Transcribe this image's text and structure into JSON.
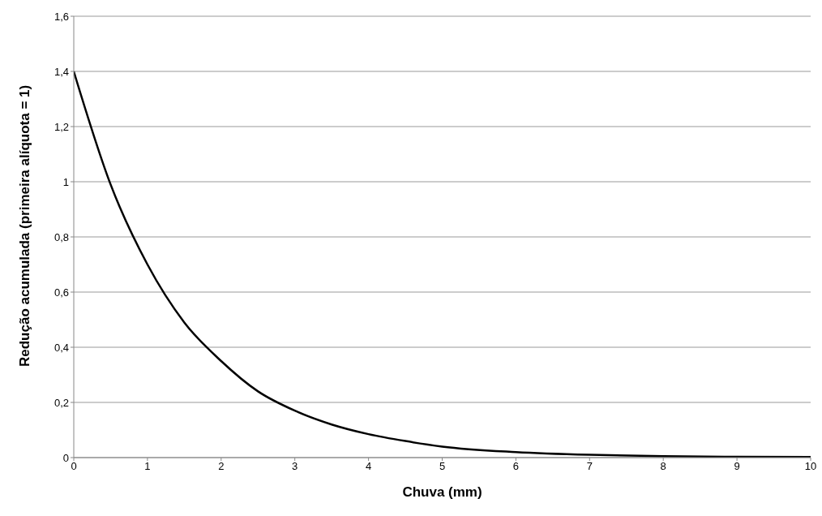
{
  "chart_data": {
    "type": "line",
    "xlabel": "Chuva (mm)",
    "ylabel": "Redução acumulada (primeira alíquota = 1)",
    "x": [
      0,
      0.5,
      1,
      1.5,
      2,
      2.5,
      3,
      3.5,
      4,
      4.5,
      5,
      6,
      7,
      8,
      9,
      10
    ],
    "series": [
      {
        "color": "#000000",
        "values": [
          1.4,
          0.99,
          0.7,
          0.49,
          0.35,
          0.24,
          0.17,
          0.12,
          0.085,
          0.06,
          0.04,
          0.02,
          0.01,
          0.005,
          0.003,
          0.002
        ]
      }
    ],
    "xlim": [
      0,
      10
    ],
    "xticks": [
      0,
      1,
      2,
      3,
      4,
      5,
      6,
      7,
      8,
      9,
      10
    ],
    "ylim": [
      0,
      1.6
    ],
    "yticks": [
      0,
      {
        "value": 0.2,
        "label": "0,2"
      },
      {
        "value": 0.4,
        "label": "0,4"
      },
      {
        "value": 0.6,
        "label": "0,6"
      },
      {
        "value": 0.8,
        "label": "0,8"
      },
      1,
      {
        "value": 1.2,
        "label": "1,2"
      },
      {
        "value": 1.4,
        "label": "1,4"
      },
      {
        "value": 1.6,
        "label": "1,6"
      }
    ],
    "grid": "y",
    "marker": "none",
    "line_style": "solid"
  }
}
